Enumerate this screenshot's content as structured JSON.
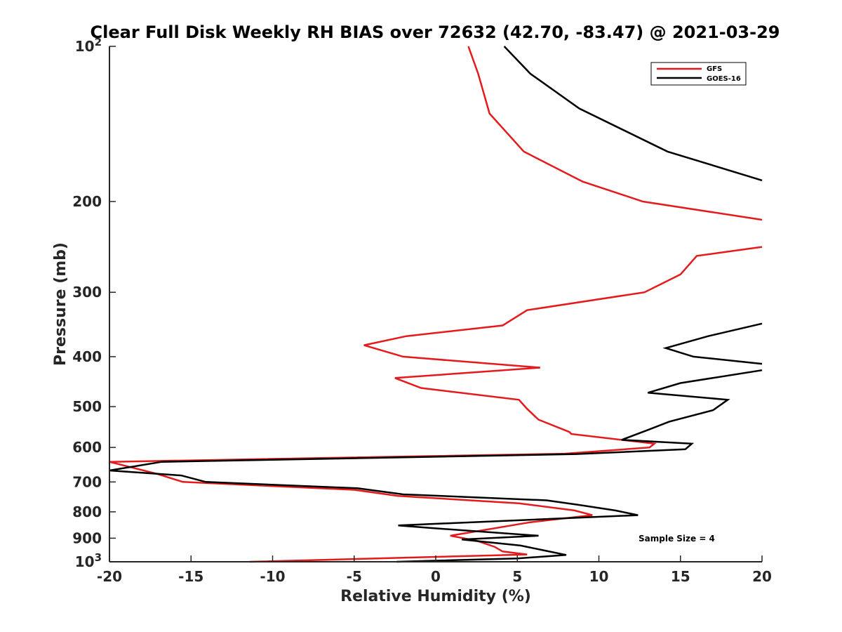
{
  "chart_data": {
    "type": "line",
    "title": "Clear Full Disk Weekly RH BIAS over 72632 (42.70, -83.47) @ 2021-03-29",
    "xlabel": "Relative Humidity (%)",
    "ylabel": "Pressure (mb)",
    "xlim": [
      -20,
      20
    ],
    "ylim": [
      100,
      1000
    ],
    "y_scale": "log",
    "y_reversed": true,
    "grid": false,
    "legend_position": "top-right",
    "x_ticks": [
      {
        "value": -20,
        "label": "-20"
      },
      {
        "value": -15,
        "label": "-15"
      },
      {
        "value": -10,
        "label": "-10"
      },
      {
        "value": -5,
        "label": "-5"
      },
      {
        "value": 0,
        "label": "0"
      },
      {
        "value": 5,
        "label": "5"
      },
      {
        "value": 10,
        "label": "10"
      },
      {
        "value": 15,
        "label": "15"
      },
      {
        "value": 20,
        "label": "20"
      }
    ],
    "y_ticks": [
      {
        "value": 100,
        "label": "10",
        "sup": "2"
      },
      {
        "value": 200,
        "label": "200"
      },
      {
        "value": 300,
        "label": "300"
      },
      {
        "value": 400,
        "label": "400"
      },
      {
        "value": 500,
        "label": "500"
      },
      {
        "value": 600,
        "label": "600"
      },
      {
        "value": 700,
        "label": "700"
      },
      {
        "value": 800,
        "label": "800"
      },
      {
        "value": 900,
        "label": "900"
      },
      {
        "value": 1000,
        "label": "10",
        "sup": "3"
      }
    ],
    "annotation": "Sample Size = 4",
    "series": [
      {
        "name": "GFS",
        "color": "#e41a1c",
        "segments": [
          [
            [
              2.0,
              100
            ],
            [
              2.6,
              113
            ],
            [
              3.3,
              135
            ],
            [
              5.4,
              160
            ],
            [
              9.0,
              183
            ],
            [
              12.7,
              200
            ],
            [
              20.0,
              217
            ]
          ],
          [
            [
              20.0,
              245
            ],
            [
              16.0,
              255
            ],
            [
              15.0,
              277
            ],
            [
              12.8,
              300
            ],
            [
              5.6,
              325
            ],
            [
              4.1,
              348
            ],
            [
              -1.8,
              365
            ],
            [
              -4.4,
              380
            ],
            [
              -2.0,
              400
            ],
            [
              6.4,
              420
            ],
            [
              -2.5,
              440
            ],
            [
              -0.9,
              460
            ],
            [
              5.1,
              485
            ],
            [
              5.6,
              505
            ],
            [
              6.3,
              530
            ],
            [
              8.2,
              560
            ],
            [
              8.3,
              565
            ],
            [
              13.4,
              590
            ],
            [
              13.1,
              600
            ],
            [
              7.9,
              617
            ],
            [
              -20.0,
              640
            ],
            [
              -17.1,
              675
            ],
            [
              -15.5,
              700
            ],
            [
              -5.0,
              725
            ],
            [
              -2.3,
              745
            ],
            [
              5.1,
              770
            ],
            [
              8.5,
              795
            ],
            [
              9.6,
              812
            ],
            [
              5.8,
              838
            ],
            [
              0.9,
              890
            ],
            [
              2.5,
              910
            ],
            [
              3.6,
              935
            ],
            [
              4.1,
              955
            ],
            [
              5.6,
              968
            ],
            [
              -11.4,
              1000
            ]
          ]
        ]
      },
      {
        "name": "GOES-16",
        "color": "#000000",
        "segments": [
          [
            [
              4.2,
              100
            ],
            [
              5.8,
              113
            ],
            [
              8.8,
              132
            ],
            [
              14.2,
              160
            ],
            [
              20.0,
              182
            ]
          ],
          [
            [
              20.0,
              345
            ],
            [
              16.7,
              365
            ],
            [
              14.1,
              385
            ],
            [
              15.8,
              400
            ],
            [
              20.0,
              413
            ]
          ],
          [
            [
              20.0,
              425
            ],
            [
              15.0,
              450
            ],
            [
              13.0,
              470
            ],
            [
              17.9,
              485
            ],
            [
              17.0,
              508
            ],
            [
              14.3,
              535
            ],
            [
              13.0,
              555
            ],
            [
              11.4,
              580
            ],
            [
              15.7,
              590
            ],
            [
              15.3,
              605
            ],
            [
              8.6,
              618
            ],
            [
              -16.8,
              640
            ],
            [
              -20.0,
              665
            ],
            [
              -15.6,
              680
            ],
            [
              -14.1,
              700
            ],
            [
              -4.8,
              720
            ],
            [
              -2.0,
              740
            ],
            [
              6.8,
              760
            ],
            [
              8.7,
              775
            ],
            [
              11.0,
              795
            ],
            [
              12.4,
              812
            ],
            [
              -2.3,
              850
            ],
            [
              -0.3,
              860
            ],
            [
              6.3,
              890
            ],
            [
              1.6,
              905
            ],
            [
              5.2,
              930
            ],
            [
              6.6,
              950
            ],
            [
              8.0,
              970
            ],
            [
              5.0,
              985
            ],
            [
              -2.4,
              1000
            ]
          ]
        ]
      }
    ]
  }
}
